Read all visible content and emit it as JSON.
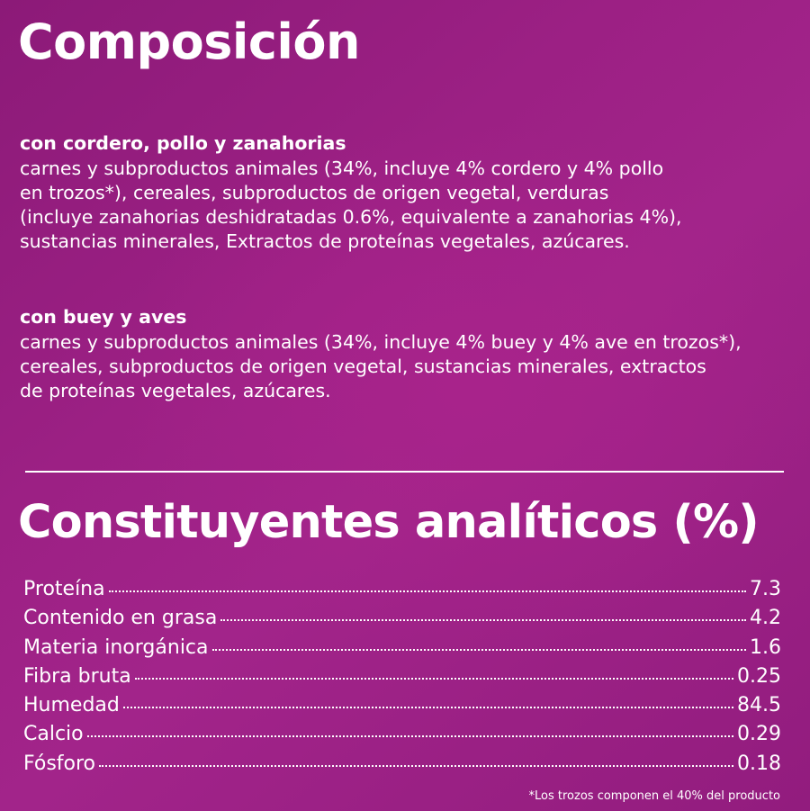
{
  "composition": {
    "title": "Composición",
    "recipes": [
      {
        "name": "con cordero, pollo y zanahorias",
        "lines": [
          "carnes y subproductos animales (34%, incluye 4% cordero y 4% pollo",
          "en trozos*), cereales, subproductos de origen vegetal, verduras",
          "(incluye zanahorias deshidratadas 0.6%, equivalente a zanahorias 4%),",
          "sustancias minerales, Extractos de proteínas vegetales, azúcares."
        ]
      },
      {
        "name": "con buey y aves",
        "lines": [
          "carnes y subproductos animales (34%, incluye 4% buey y 4% ave en trozos*),",
          "cereales, subproductos de origen vegetal, sustancias minerales, extractos",
          "de proteínas vegetales, azúcares."
        ]
      }
    ]
  },
  "analytics": {
    "title": "Constituyentes analíticos (%)",
    "rows": [
      {
        "label": "Proteína",
        "value": "7.3"
      },
      {
        "label": "Contenido en grasa",
        "value": "4.2"
      },
      {
        "label": "Materia inorgánica",
        "value": "1.6"
      },
      {
        "label": "Fibra bruta",
        "value": "0.25"
      },
      {
        "label": "Humedad",
        "value": "84.5"
      },
      {
        "label": "Calcio",
        "value": "0.29"
      },
      {
        "label": "Fósforo",
        "value": "0.18"
      }
    ]
  },
  "footnote": "*Los trozos componen el 40% del producto",
  "colors": {
    "background": "#9c2084",
    "text": "#ffffff"
  }
}
